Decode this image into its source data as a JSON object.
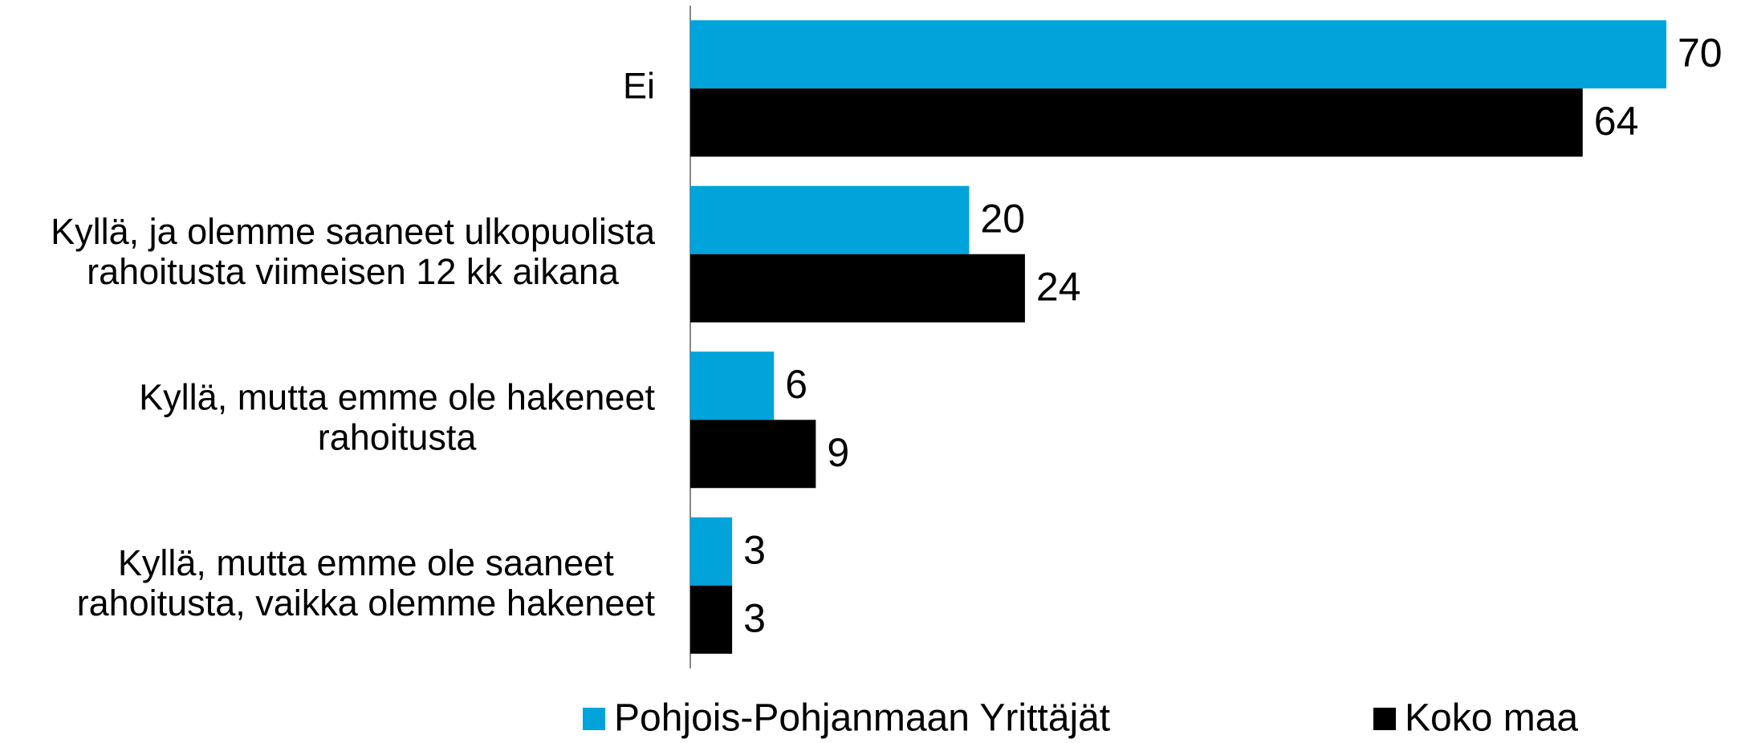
{
  "chart_data": {
    "type": "hbar",
    "categories": [
      [
        "Ei"
      ],
      [
        "Kyllä, ja olemme saaneet ulkopuolista",
        "rahoitusta viimeisen 12 kk aikana"
      ],
      [
        "Kyllä, mutta emme ole hakeneet",
        "rahoitusta"
      ],
      [
        "Kyllä, mutta emme ole saaneet",
        "rahoitusta, vaikka olemme hakeneet"
      ]
    ],
    "series": [
      {
        "name": "Pohjois-Pohjanmaan Yrittäjät",
        "color": "#00a3da",
        "values": [
          70,
          20,
          6,
          3
        ]
      },
      {
        "name": "Koko maa",
        "color": "#000000",
        "values": [
          64,
          24,
          9,
          3
        ]
      }
    ],
    "xlim": [
      0,
      70
    ],
    "legend": "bottom"
  }
}
